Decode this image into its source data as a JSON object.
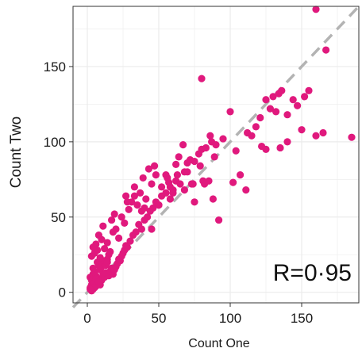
{
  "chart_data": {
    "type": "scatter",
    "xlabel": "Count One",
    "ylabel": "Count Two",
    "xlim": [
      -10,
      190
    ],
    "ylim": [
      -7,
      190
    ],
    "xticks": [
      0,
      50,
      100,
      150
    ],
    "yticks": [
      0,
      50,
      100,
      150
    ],
    "grid": true,
    "annotation": "R=0·95",
    "colors": {
      "points": "#e0197d",
      "reference_line": "#b3b3b3",
      "panel_border": "#333333",
      "grid": "#ebebeb"
    },
    "reference_line": {
      "from": [
        -10,
        -10
      ],
      "to": [
        190,
        190
      ],
      "style": "dashed"
    },
    "series": [
      {
        "x": [
          2,
          3,
          4,
          3,
          5,
          6,
          2,
          4,
          7,
          8,
          5,
          3,
          6,
          9,
          10,
          4,
          8,
          11,
          12,
          7,
          5,
          9,
          13,
          14,
          6,
          10,
          15,
          3,
          8,
          12,
          16,
          2,
          5,
          11,
          17,
          18,
          7,
          13,
          19,
          4,
          9,
          14,
          20,
          6,
          15,
          21,
          22,
          10,
          16,
          23,
          8,
          12,
          24,
          25,
          18,
          14,
          26,
          20,
          27,
          11,
          28,
          22,
          17,
          30,
          24,
          32,
          19,
          34,
          26,
          36,
          29,
          38,
          31,
          40,
          27,
          42,
          35,
          44,
          37,
          46,
          33,
          48,
          41,
          50,
          45,
          52,
          39,
          55,
          48,
          58,
          43,
          60,
          52,
          62,
          47,
          65,
          56,
          68,
          50,
          70,
          60,
          72,
          55,
          75,
          64,
          78,
          58,
          80,
          67,
          85,
          62,
          88,
          73,
          92,
          40,
          33,
          28,
          45,
          38,
          57,
          63,
          70,
          75,
          68,
          74,
          79,
          81,
          82,
          83,
          86,
          87,
          89,
          80,
          90,
          95,
          100,
          102,
          104,
          107,
          111,
          112,
          115,
          118,
          121,
          122,
          125,
          128,
          130,
          132,
          134,
          136,
          140,
          144,
          147,
          152,
          155,
          160,
          160,
          165,
          167,
          185,
          150,
          140,
          125,
          135
        ],
        "y": [
          3,
          5,
          2,
          8,
          6,
          4,
          10,
          12,
          7,
          9,
          14,
          1,
          11,
          5,
          8,
          16,
          18,
          12,
          10,
          20,
          3,
          15,
          13,
          22,
          9,
          17,
          11,
          24,
          7,
          19,
          14,
          2,
          26,
          21,
          16,
          12,
          28,
          18,
          15,
          30,
          23,
          20,
          17,
          32,
          25,
          19,
          22,
          35,
          27,
          21,
          38,
          29,
          24,
          26,
          40,
          33,
          28,
          42,
          31,
          44,
          30,
          36,
          48,
          34,
          50,
          38,
          52,
          40,
          46,
          45,
          55,
          42,
          60,
          48,
          64,
          50,
          58,
          54,
          66,
          56,
          70,
          60,
          62,
          58,
          72,
          64,
          76,
          66,
          78,
          62,
          82,
          68,
          70,
          74,
          84,
          72,
          76,
          80,
          58,
          86,
          66,
          88,
          78,
          60,
          90,
          92,
          70,
          95,
          98,
          74,
          85,
          62,
          72,
          48,
          56,
          64,
          60,
          42,
          54,
          73,
          78,
          80,
          87,
          68,
          72,
          84,
          74,
          72,
          96,
          104,
          100,
          90,
          142,
          98,
          102,
          120,
          73,
          94,
          78,
          68,
          106,
          104,
          110,
          116,
          97,
          128,
          122,
          130,
          120,
          132,
          134,
          118,
          128,
          124,
          130,
          134,
          104,
          188,
          106,
          161,
          103,
          108,
          100,
          95,
          96
        ],
        "marker": "circle"
      }
    ]
  }
}
